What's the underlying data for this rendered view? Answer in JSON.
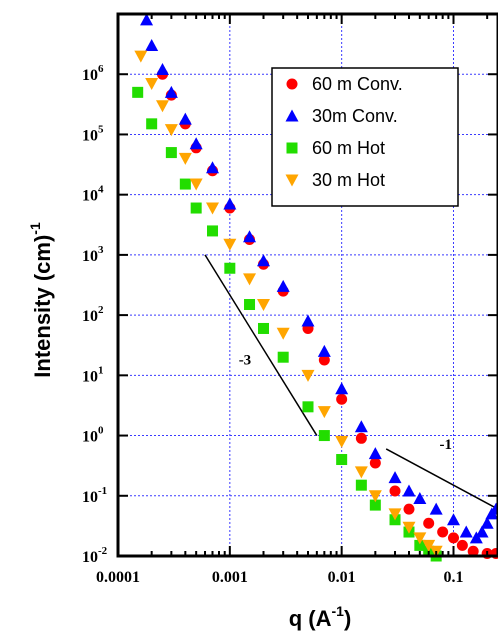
{
  "chart_data": {
    "type": "scatter",
    "title": "",
    "xlabel": {
      "base": "q (A",
      "sup": "-1",
      "tail": ")"
    },
    "ylabel": {
      "base": "Intensity (cm)",
      "sup": "-1"
    },
    "x_scale": "log",
    "y_scale": "log",
    "xlim": [
      0.0001,
      0.25
    ],
    "ylim": [
      0.01,
      10000000
    ],
    "grid": true,
    "legend_position": "top-right",
    "x_ticks": [
      {
        "value": 0.0001,
        "label": "0.0001"
      },
      {
        "value": 0.001,
        "label": "0.001"
      },
      {
        "value": 0.01,
        "label": "0.01"
      },
      {
        "value": 0.1,
        "label": "0.1"
      }
    ],
    "y_ticks": [
      {
        "value": 0.01,
        "base": "10",
        "exp": "-2"
      },
      {
        "value": 0.1,
        "base": "10",
        "exp": "-1"
      },
      {
        "value": 1,
        "base": "10",
        "exp": "0"
      },
      {
        "value": 10,
        "base": "10",
        "exp": "1"
      },
      {
        "value": 100,
        "base": "10",
        "exp": "2"
      },
      {
        "value": 1000,
        "base": "10",
        "exp": "3"
      },
      {
        "value": 10000,
        "base": "10",
        "exp": "4"
      },
      {
        "value": 100000,
        "base": "10",
        "exp": "5"
      },
      {
        "value": 1000000,
        "base": "10",
        "exp": "6"
      }
    ],
    "series": [
      {
        "name": "60 m Conv.",
        "marker": "circle",
        "color": "#ff0000",
        "points": [
          [
            0.00025,
            1000000
          ],
          [
            0.0003,
            450000
          ],
          [
            0.0004,
            150000
          ],
          [
            0.0005,
            60000
          ],
          [
            0.0007,
            25000
          ],
          [
            0.001,
            6000
          ],
          [
            0.0015,
            1800
          ],
          [
            0.002,
            700
          ],
          [
            0.003,
            250
          ],
          [
            0.005,
            60
          ],
          [
            0.007,
            18
          ],
          [
            0.01,
            4
          ],
          [
            0.015,
            0.9
          ],
          [
            0.02,
            0.35
          ],
          [
            0.03,
            0.12
          ],
          [
            0.04,
            0.06
          ],
          [
            0.06,
            0.035
          ],
          [
            0.08,
            0.025
          ],
          [
            0.1,
            0.02
          ],
          [
            0.12,
            0.015
          ],
          [
            0.15,
            0.012
          ],
          [
            0.2,
            0.011
          ],
          [
            0.24,
            0.011
          ]
        ]
      },
      {
        "name": "30m Conv.",
        "marker": "triangle-up",
        "color": "#0000ff",
        "points": [
          [
            0.00018,
            8000000
          ],
          [
            0.0002,
            3000000
          ],
          [
            0.00025,
            1200000
          ],
          [
            0.0003,
            500000
          ],
          [
            0.0004,
            180000
          ],
          [
            0.0005,
            70000
          ],
          [
            0.0007,
            28000
          ],
          [
            0.001,
            7000
          ],
          [
            0.0015,
            2000
          ],
          [
            0.002,
            800
          ],
          [
            0.003,
            300
          ],
          [
            0.005,
            80
          ],
          [
            0.007,
            25
          ],
          [
            0.01,
            6
          ],
          [
            0.015,
            1.4
          ],
          [
            0.02,
            0.5
          ],
          [
            0.03,
            0.2
          ],
          [
            0.04,
            0.12
          ],
          [
            0.05,
            0.09
          ],
          [
            0.07,
            0.06
          ],
          [
            0.1,
            0.04
          ],
          [
            0.13,
            0.025
          ],
          [
            0.16,
            0.02
          ],
          [
            0.18,
            0.025
          ],
          [
            0.2,
            0.035
          ],
          [
            0.22,
            0.05
          ],
          [
            0.24,
            0.06
          ]
        ]
      },
      {
        "name": "60 m Hot",
        "marker": "square",
        "color": "#22dd00",
        "points": [
          [
            0.00015,
            500000
          ],
          [
            0.0002,
            150000
          ],
          [
            0.0003,
            50000
          ],
          [
            0.0004,
            15000
          ],
          [
            0.0005,
            6000
          ],
          [
            0.0007,
            2500
          ],
          [
            0.001,
            600
          ],
          [
            0.0015,
            150
          ],
          [
            0.002,
            60
          ],
          [
            0.003,
            20
          ],
          [
            0.005,
            3
          ],
          [
            0.007,
            1
          ],
          [
            0.01,
            0.4
          ],
          [
            0.015,
            0.15
          ],
          [
            0.02,
            0.07
          ],
          [
            0.03,
            0.04
          ],
          [
            0.04,
            0.025
          ],
          [
            0.05,
            0.015
          ],
          [
            0.06,
            0.012
          ],
          [
            0.07,
            0.01
          ]
        ]
      },
      {
        "name": "30 m Hot",
        "marker": "triangle-down",
        "color": "#ffa500",
        "points": [
          [
            0.00016,
            2000000
          ],
          [
            0.0002,
            700000
          ],
          [
            0.00025,
            300000
          ],
          [
            0.0003,
            120000
          ],
          [
            0.0004,
            40000
          ],
          [
            0.0005,
            15000
          ],
          [
            0.0007,
            6000
          ],
          [
            0.001,
            1500
          ],
          [
            0.0015,
            400
          ],
          [
            0.002,
            150
          ],
          [
            0.003,
            50
          ],
          [
            0.005,
            10
          ],
          [
            0.007,
            2.5
          ],
          [
            0.01,
            0.8
          ],
          [
            0.015,
            0.25
          ],
          [
            0.02,
            0.1
          ],
          [
            0.03,
            0.05
          ],
          [
            0.04,
            0.03
          ],
          [
            0.05,
            0.02
          ],
          [
            0.06,
            0.015
          ],
          [
            0.07,
            0.012
          ]
        ]
      }
    ],
    "annotations": [
      {
        "text": "-3",
        "line": [
          [
            0.0006,
            1000
          ],
          [
            0.006,
            1
          ]
        ],
        "label_at": [
          0.0012,
          15
        ]
      },
      {
        "text": "-1",
        "line": [
          [
            0.025,
            0.6
          ],
          [
            0.25,
            0.06
          ]
        ],
        "label_at": [
          0.075,
          0.6
        ]
      }
    ]
  }
}
